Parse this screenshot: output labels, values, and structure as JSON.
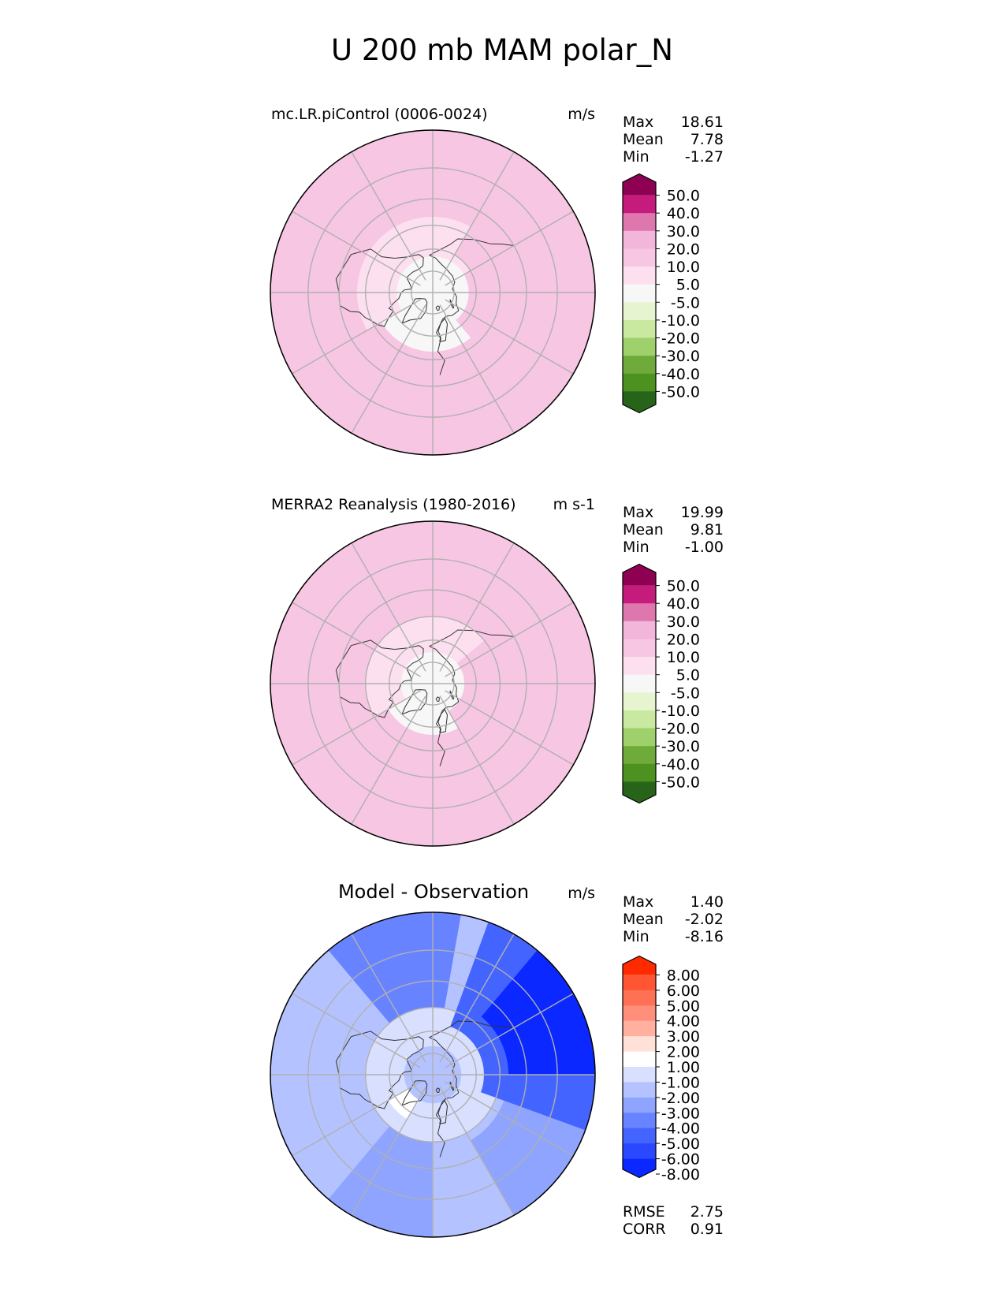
{
  "title": "U 200 mb MAM polar_N",
  "colors": {
    "purple_green": [
      "#8e0152",
      "#c51b7d",
      "#de77ae",
      "#f1b6da",
      "#f7c6e3",
      "#fde0ef",
      "#f7f7f7",
      "#e6f5d0",
      "#c9e8a0",
      "#9ed06b",
      "#6eab3a",
      "#4d9221",
      "#276419"
    ],
    "blue_red": [
      "#ff2a00",
      "#ff5533",
      "#ff7155",
      "#ff8f7a",
      "#ffb09f",
      "#ffe1d8",
      "#ffffff",
      "#d9e0ff",
      "#b4c3ff",
      "#8ea4ff",
      "#6883ff",
      "#4464ff",
      "#2a48ff",
      "#0a28ff"
    ],
    "land_outline": "#333333",
    "grid": "#b0b0b0"
  },
  "chart_data": [
    {
      "type": "heatmap",
      "projection": "north polar stereographic",
      "title_left": "mc.LR.piControl (0006-0024)",
      "units": "m/s",
      "stats": [
        {
          "label": "Max",
          "value": "18.61"
        },
        {
          "label": "Mean",
          "value": "7.78"
        },
        {
          "label": "Min",
          "value": "-1.27"
        }
      ],
      "colorbar": {
        "levels": [
          "50.0",
          "40.0",
          "30.0",
          "20.0",
          "10.0",
          "5.0",
          "-5.0",
          "-10.0",
          "-20.0",
          "-30.0",
          "-40.0",
          "-50.0"
        ],
        "extend": "both"
      },
      "regions": [
        {
          "lon_start": 0,
          "lon_end": 360,
          "lat_min": 0,
          "lat_max": 90,
          "value": 15
        },
        {
          "lon_start": 120,
          "lon_end": 300,
          "lat_min": 40,
          "lat_max": 90,
          "value": 7
        },
        {
          "lon_start": 0,
          "lon_end": 360,
          "lat_min": 65,
          "lat_max": 90,
          "value": 3
        },
        {
          "lon_start": 300,
          "lon_end": 360,
          "lat_min": 50,
          "lat_max": 90,
          "value": 3
        },
        {
          "lon_start": 0,
          "lon_end": 40,
          "lat_min": 50,
          "lat_max": 90,
          "value": 3
        },
        {
          "lon_start": 100,
          "lon_end": 150,
          "lat_min": 40,
          "lat_max": 60,
          "value": 15
        }
      ]
    },
    {
      "type": "heatmap",
      "projection": "north polar stereographic",
      "title_left": "MERRA2 Reanalysis (1980-2016)",
      "units": "m s-1",
      "stats": [
        {
          "label": "Max",
          "value": "19.99"
        },
        {
          "label": "Mean",
          "value": "9.81"
        },
        {
          "label": "Min",
          "value": "-1.00"
        }
      ],
      "colorbar": {
        "levels": [
          "50.0",
          "40.0",
          "30.0",
          "20.0",
          "10.0",
          "5.0",
          "-5.0",
          "-10.0",
          "-20.0",
          "-30.0",
          "-40.0",
          "-50.0"
        ],
        "extend": "both"
      },
      "regions": [
        {
          "lon_start": 0,
          "lon_end": 360,
          "lat_min": 0,
          "lat_max": 90,
          "value": 15
        },
        {
          "lon_start": 130,
          "lon_end": 300,
          "lat_min": 45,
          "lat_max": 90,
          "value": 7
        },
        {
          "lon_start": 0,
          "lon_end": 360,
          "lat_min": 68,
          "lat_max": 90,
          "value": 3
        },
        {
          "lon_start": 300,
          "lon_end": 360,
          "lat_min": 55,
          "lat_max": 90,
          "value": 3
        },
        {
          "lon_start": 0,
          "lon_end": 30,
          "lat_min": 55,
          "lat_max": 90,
          "value": 3
        }
      ]
    },
    {
      "type": "heatmap",
      "projection": "north polar stereographic",
      "title_center": "Model - Observation",
      "units": "m/s",
      "stats": [
        {
          "label": "Max",
          "value": "1.40"
        },
        {
          "label": "Mean",
          "value": "-2.02"
        },
        {
          "label": "Min",
          "value": "-8.16"
        }
      ],
      "colorbar": {
        "levels": [
          "8.00",
          "6.00",
          "5.00",
          "4.00",
          "3.00",
          "2.00",
          "1.00",
          "-1.00",
          "-2.00",
          "-3.00",
          "-4.00",
          "-5.00",
          "-6.00",
          "-8.00"
        ],
        "extend": "both"
      },
      "regions": [
        {
          "lon_start": 0,
          "lon_end": 360,
          "lat_min": 0,
          "lat_max": 90,
          "value": -1.5
        },
        {
          "lon_start": 0,
          "lon_end": 360,
          "lat_min": 45,
          "lat_max": 70,
          "value": 0
        },
        {
          "lon_start": 170,
          "lon_end": 220,
          "lat_min": 0,
          "lat_max": 45,
          "value": -3.5
        },
        {
          "lon_start": 70,
          "lon_end": 160,
          "lat_min": 0,
          "lat_max": 55,
          "value": -4.5
        },
        {
          "lon_start": 90,
          "lon_end": 140,
          "lat_min": 0,
          "lat_max": 40,
          "value": -7
        },
        {
          "lon_start": 30,
          "lon_end": 70,
          "lat_min": 0,
          "lat_max": 40,
          "value": -2.5
        },
        {
          "lon_start": 320,
          "lon_end": 360,
          "lat_min": 0,
          "lat_max": 45,
          "value": -2.5
        },
        {
          "lon_start": 300,
          "lon_end": 330,
          "lat_min": 55,
          "lat_max": 70,
          "value": 1.5
        }
      ],
      "extra_stats": [
        {
          "label": "RMSE",
          "value": "2.75"
        },
        {
          "label": "CORR",
          "value": "0.91"
        }
      ]
    }
  ]
}
